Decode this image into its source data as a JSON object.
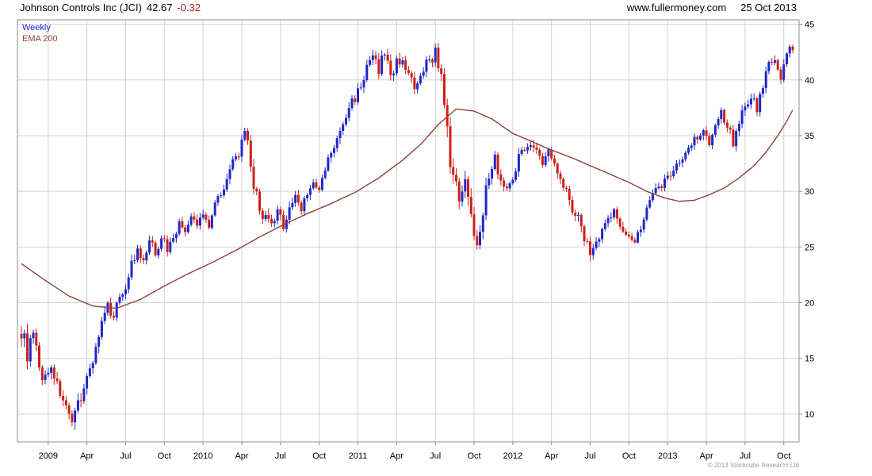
{
  "header": {
    "title": "Johnson Controls Inc (JCI)",
    "price": "42.67",
    "change": "-0.32",
    "website": "www.fullermoney.com",
    "date": "25 Oct 2013"
  },
  "legend": {
    "series1": "Weekly",
    "series2": "EMA 200"
  },
  "footer": {
    "copyright": "© 2013 Stockcube Research Ltd"
  },
  "colors": {
    "up": "#2026c8",
    "down": "#cc2018",
    "ema": "#8e4238",
    "grid": "#d2d2d2",
    "border": "#8c8c8c",
    "change": "#b01515"
  },
  "chart_data": {
    "type": "candlestick",
    "title": "Johnson Controls Inc (JCI)",
    "timeframe": "Weekly",
    "overlay": "EMA 200",
    "last_close": 42.67,
    "change": -0.32,
    "date": "25 Oct 2013",
    "y_ticks": [
      10,
      15,
      20,
      25,
      30,
      35,
      40,
      45
    ],
    "y_range": [
      7.5,
      45.4
    ],
    "weeks_total": 260,
    "x_labels": [
      {
        "week": 9,
        "label": "2009"
      },
      {
        "week": 22,
        "label": "Apr"
      },
      {
        "week": 35,
        "label": "Jul"
      },
      {
        "week": 48,
        "label": "Oct"
      },
      {
        "week": 61,
        "label": "2010"
      },
      {
        "week": 74,
        "label": "Apr"
      },
      {
        "week": 87,
        "label": "Jul"
      },
      {
        "week": 100,
        "label": "Oct"
      },
      {
        "week": 113,
        "label": "2011"
      },
      {
        "week": 126,
        "label": "Apr"
      },
      {
        "week": 139,
        "label": "Jul"
      },
      {
        "week": 152,
        "label": "Oct"
      },
      {
        "week": 165,
        "label": "2012"
      },
      {
        "week": 178,
        "label": "Apr"
      },
      {
        "week": 191,
        "label": "Jul"
      },
      {
        "week": 204,
        "label": "Oct"
      },
      {
        "week": 217,
        "label": "2013"
      },
      {
        "week": 230,
        "label": "Apr"
      },
      {
        "week": 243,
        "label": "Jul"
      },
      {
        "week": 256,
        "label": "Oct"
      }
    ],
    "close_anchors": [
      [
        0,
        17.5,
        1.6
      ],
      [
        2,
        15.5,
        1.8
      ],
      [
        4,
        17.0,
        1.6
      ],
      [
        6,
        14.0,
        1.5
      ],
      [
        8,
        13.2,
        1.4
      ],
      [
        10,
        14.5,
        1.3
      ],
      [
        12,
        12.5,
        1.3
      ],
      [
        14,
        11.5,
        1.2
      ],
      [
        16,
        9.5,
        1.2
      ],
      [
        17,
        8.7,
        1.3
      ],
      [
        19,
        11.0,
        1.4
      ],
      [
        21,
        12.5,
        1.3
      ],
      [
        23,
        14.0,
        1.3
      ],
      [
        25,
        16.0,
        1.2
      ],
      [
        27,
        18.0,
        1.3
      ],
      [
        29,
        19.5,
        1.2
      ],
      [
        31,
        19.0,
        1.0
      ],
      [
        33,
        20.5,
        1.0
      ],
      [
        35,
        21.5,
        1.0
      ],
      [
        37,
        23.5,
        1.1
      ],
      [
        39,
        24.5,
        1.0
      ],
      [
        41,
        23.5,
        1.0
      ],
      [
        43,
        25.5,
        1.0
      ],
      [
        45,
        24.5,
        1.0
      ],
      [
        47,
        26.0,
        1.0
      ],
      [
        49,
        24.8,
        1.0
      ],
      [
        51,
        26.0,
        0.9
      ],
      [
        53,
        27.0,
        0.9
      ],
      [
        55,
        26.5,
        0.9
      ],
      [
        57,
        27.5,
        0.9
      ],
      [
        59,
        27.0,
        0.9
      ],
      [
        61,
        28.0,
        0.9
      ],
      [
        63,
        27.0,
        0.9
      ],
      [
        65,
        29.0,
        0.9
      ],
      [
        67,
        30.0,
        0.9
      ],
      [
        69,
        31.0,
        1.0
      ],
      [
        71,
        32.5,
        1.1
      ],
      [
        73,
        33.5,
        1.1
      ],
      [
        75,
        35.0,
        1.2
      ],
      [
        76,
        34.0,
        1.4
      ],
      [
        78,
        30.5,
        1.5
      ],
      [
        80,
        28.5,
        1.3
      ],
      [
        82,
        27.5,
        1.2
      ],
      [
        84,
        26.8,
        1.2
      ],
      [
        86,
        28.0,
        1.1
      ],
      [
        88,
        27.0,
        1.2
      ],
      [
        90,
        28.5,
        1.1
      ],
      [
        92,
        29.5,
        1.0
      ],
      [
        94,
        28.5,
        1.0
      ],
      [
        96,
        30.0,
        1.0
      ],
      [
        98,
        30.5,
        1.0
      ],
      [
        100,
        30.0,
        1.0
      ],
      [
        102,
        32.0,
        1.0
      ],
      [
        104,
        33.5,
        1.0
      ],
      [
        106,
        34.5,
        1.0
      ],
      [
        108,
        36.0,
        1.1
      ],
      [
        110,
        37.5,
        1.1
      ],
      [
        112,
        38.5,
        1.1
      ],
      [
        114,
        39.5,
        1.1
      ],
      [
        116,
        41.0,
        1.1
      ],
      [
        118,
        42.0,
        1.1
      ],
      [
        120,
        41.0,
        1.2
      ],
      [
        122,
        42.5,
        1.1
      ],
      [
        124,
        40.5,
        1.2
      ],
      [
        126,
        41.5,
        1.1
      ],
      [
        128,
        42.0,
        1.1
      ],
      [
        130,
        40.5,
        1.1
      ],
      [
        132,
        39.0,
        1.1
      ],
      [
        134,
        40.0,
        1.0
      ],
      [
        136,
        41.5,
        1.0
      ],
      [
        138,
        42.0,
        1.1
      ],
      [
        139,
        42.8,
        1.2
      ],
      [
        141,
        40.0,
        1.6
      ],
      [
        143,
        35.0,
        2.1
      ],
      [
        145,
        31.0,
        2.0
      ],
      [
        147,
        29.5,
        1.8
      ],
      [
        149,
        31.5,
        1.6
      ],
      [
        151,
        27.5,
        1.7
      ],
      [
        153,
        25.5,
        1.6
      ],
      [
        155,
        28.5,
        1.5
      ],
      [
        157,
        31.5,
        1.4
      ],
      [
        159,
        33.0,
        1.3
      ],
      [
        161,
        31.0,
        1.2
      ],
      [
        163,
        30.0,
        1.2
      ],
      [
        165,
        31.5,
        1.1
      ],
      [
        167,
        33.0,
        1.1
      ],
      [
        169,
        34.0,
        1.0
      ],
      [
        171,
        34.5,
        1.0
      ],
      [
        173,
        33.5,
        1.0
      ],
      [
        175,
        32.5,
        1.0
      ],
      [
        177,
        33.5,
        1.0
      ],
      [
        179,
        32.5,
        1.0
      ],
      [
        181,
        31.5,
        1.0
      ],
      [
        183,
        30.0,
        1.1
      ],
      [
        185,
        28.5,
        1.1
      ],
      [
        187,
        27.5,
        1.1
      ],
      [
        189,
        26.0,
        1.1
      ],
      [
        191,
        24.5,
        1.2
      ],
      [
        193,
        25.5,
        1.0
      ],
      [
        195,
        26.5,
        1.0
      ],
      [
        197,
        27.5,
        1.0
      ],
      [
        199,
        28.0,
        1.0
      ],
      [
        201,
        27.0,
        0.9
      ],
      [
        203,
        26.5,
        0.9
      ],
      [
        205,
        25.5,
        0.9
      ],
      [
        207,
        26.0,
        0.9
      ],
      [
        209,
        27.5,
        0.9
      ],
      [
        211,
        29.0,
        0.9
      ],
      [
        213,
        30.0,
        0.9
      ],
      [
        215,
        30.5,
        0.9
      ],
      [
        217,
        31.5,
        0.9
      ],
      [
        219,
        32.0,
        0.9
      ],
      [
        221,
        32.5,
        0.9
      ],
      [
        223,
        33.5,
        0.9
      ],
      [
        225,
        34.5,
        0.9
      ],
      [
        227,
        35.0,
        0.9
      ],
      [
        229,
        35.5,
        0.9
      ],
      [
        231,
        34.5,
        0.9
      ],
      [
        233,
        36.0,
        0.9
      ],
      [
        235,
        37.0,
        0.9
      ],
      [
        237,
        36.0,
        1.0
      ],
      [
        239,
        34.5,
        1.0
      ],
      [
        241,
        36.5,
        1.0
      ],
      [
        243,
        37.5,
        1.0
      ],
      [
        245,
        38.5,
        1.0
      ],
      [
        247,
        37.5,
        1.0
      ],
      [
        249,
        39.5,
        1.0
      ],
      [
        251,
        41.5,
        1.0
      ],
      [
        253,
        42.0,
        1.0
      ],
      [
        255,
        40.0,
        1.1
      ],
      [
        257,
        42.3,
        0.9
      ],
      [
        258,
        42.99,
        0.8
      ],
      [
        259,
        42.67,
        0.8
      ]
    ],
    "ema_anchors": [
      [
        0,
        23.5
      ],
      [
        8,
        22.0
      ],
      [
        16,
        20.6
      ],
      [
        24,
        19.7
      ],
      [
        32,
        19.5
      ],
      [
        40,
        20.3
      ],
      [
        48,
        21.5
      ],
      [
        56,
        22.6
      ],
      [
        64,
        23.6
      ],
      [
        72,
        24.7
      ],
      [
        80,
        25.9
      ],
      [
        88,
        27.0
      ],
      [
        96,
        28.0
      ],
      [
        104,
        28.9
      ],
      [
        112,
        29.9
      ],
      [
        120,
        31.2
      ],
      [
        128,
        32.8
      ],
      [
        134,
        34.2
      ],
      [
        140,
        36.0
      ],
      [
        146,
        37.4
      ],
      [
        152,
        37.2
      ],
      [
        158,
        36.5
      ],
      [
        165,
        35.2
      ],
      [
        172,
        34.4
      ],
      [
        178,
        33.7
      ],
      [
        185,
        33.0
      ],
      [
        191,
        32.3
      ],
      [
        198,
        31.5
      ],
      [
        204,
        30.8
      ],
      [
        210,
        30.0
      ],
      [
        216,
        29.4
      ],
      [
        221,
        29.1
      ],
      [
        226,
        29.2
      ],
      [
        231,
        29.7
      ],
      [
        236,
        30.3
      ],
      [
        241,
        31.2
      ],
      [
        246,
        32.3
      ],
      [
        250,
        33.5
      ],
      [
        254,
        35.0
      ],
      [
        257,
        36.3
      ],
      [
        259,
        37.3
      ]
    ]
  }
}
